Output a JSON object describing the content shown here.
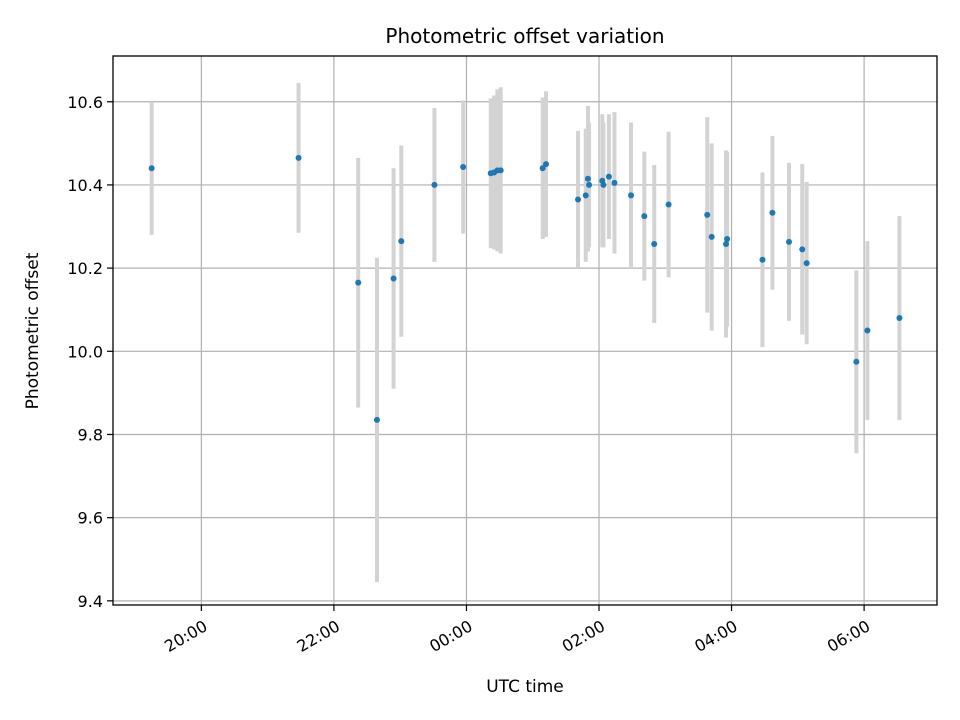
{
  "chart_data": {
    "type": "scatter",
    "title": "Photometric offset variation",
    "xlabel": "UTC time",
    "ylabel": "Photometric offset",
    "x_tick_labels": [
      "20:00",
      "22:00",
      "00:00",
      "02:00",
      "04:00",
      "06:00"
    ],
    "y_tick_labels": [
      "9.4",
      "9.6",
      "9.8",
      "10.0",
      "10.2",
      "10.4",
      "10.6"
    ],
    "y_ticks": [
      9.4,
      9.6,
      9.8,
      10.0,
      10.2,
      10.4,
      10.6
    ],
    "x_ticks": [
      "20:00",
      "22:00",
      "00:00",
      "02:00",
      "04:00",
      "06:00"
    ],
    "xlim": [
      "18:40",
      "07:06"
    ],
    "ylim": [
      9.39,
      10.71
    ],
    "grid": true,
    "x_axis_labels_rotated": true,
    "colors": {
      "points": "#1f77b4",
      "errorbars": "#d3d3d3",
      "grid": "#b0b0b0"
    },
    "points": [
      {
        "t": "19:15",
        "y": 10.44,
        "err": 0.16
      },
      {
        "t": "21:28",
        "y": 10.465,
        "err": 0.18
      },
      {
        "t": "22:22",
        "y": 10.165,
        "err": 0.3
      },
      {
        "t": "22:39",
        "y": 9.835,
        "err": 0.39
      },
      {
        "t": "22:54",
        "y": 10.175,
        "err": 0.265
      },
      {
        "t": "23:01",
        "y": 10.265,
        "err": 0.23
      },
      {
        "t": "23:31",
        "y": 10.4,
        "err": 0.185
      },
      {
        "t": "23:57",
        "y": 10.443,
        "err": 0.16
      },
      {
        "t": "00:22",
        "y": 10.428,
        "err": 0.18
      },
      {
        "t": "00:25",
        "y": 10.43,
        "err": 0.185
      },
      {
        "t": "00:28",
        "y": 10.435,
        "err": 0.195
      },
      {
        "t": "00:31",
        "y": 10.435,
        "err": 0.2
      },
      {
        "t": "01:09",
        "y": 10.44,
        "err": 0.17
      },
      {
        "t": "01:12",
        "y": 10.45,
        "err": 0.175
      },
      {
        "t": "01:41",
        "y": 10.365,
        "err": 0.165
      },
      {
        "t": "01:48",
        "y": 10.375,
        "err": 0.16
      },
      {
        "t": "01:50",
        "y": 10.415,
        "err": 0.175
      },
      {
        "t": "01:51",
        "y": 10.4,
        "err": 0.15
      },
      {
        "t": "02:03",
        "y": 10.41,
        "err": 0.16
      },
      {
        "t": "02:04",
        "y": 10.4,
        "err": 0.15
      },
      {
        "t": "02:09",
        "y": 10.42,
        "err": 0.15
      },
      {
        "t": "02:14",
        "y": 10.405,
        "err": 0.17
      },
      {
        "t": "02:29",
        "y": 10.375,
        "err": 0.175
      },
      {
        "t": "02:41",
        "y": 10.325,
        "err": 0.155
      },
      {
        "t": "02:50",
        "y": 10.258,
        "err": 0.19
      },
      {
        "t": "03:03",
        "y": 10.353,
        "err": 0.175
      },
      {
        "t": "03:38",
        "y": 10.328,
        "err": 0.235
      },
      {
        "t": "03:42",
        "y": 10.275,
        "err": 0.225
      },
      {
        "t": "03:55",
        "y": 10.258,
        "err": 0.225
      },
      {
        "t": "03:56",
        "y": 10.27,
        "err": 0.21
      },
      {
        "t": "04:28",
        "y": 10.22,
        "err": 0.21
      },
      {
        "t": "04:37",
        "y": 10.333,
        "err": 0.185
      },
      {
        "t": "04:52",
        "y": 10.263,
        "err": 0.19
      },
      {
        "t": "05:04",
        "y": 10.245,
        "err": 0.205
      },
      {
        "t": "05:08",
        "y": 10.212,
        "err": 0.195
      },
      {
        "t": "05:53",
        "y": 9.975,
        "err": 0.22
      },
      {
        "t": "06:03",
        "y": 10.05,
        "err": 0.215
      },
      {
        "t": "06:32",
        "y": 10.08,
        "err": 0.245
      }
    ]
  }
}
